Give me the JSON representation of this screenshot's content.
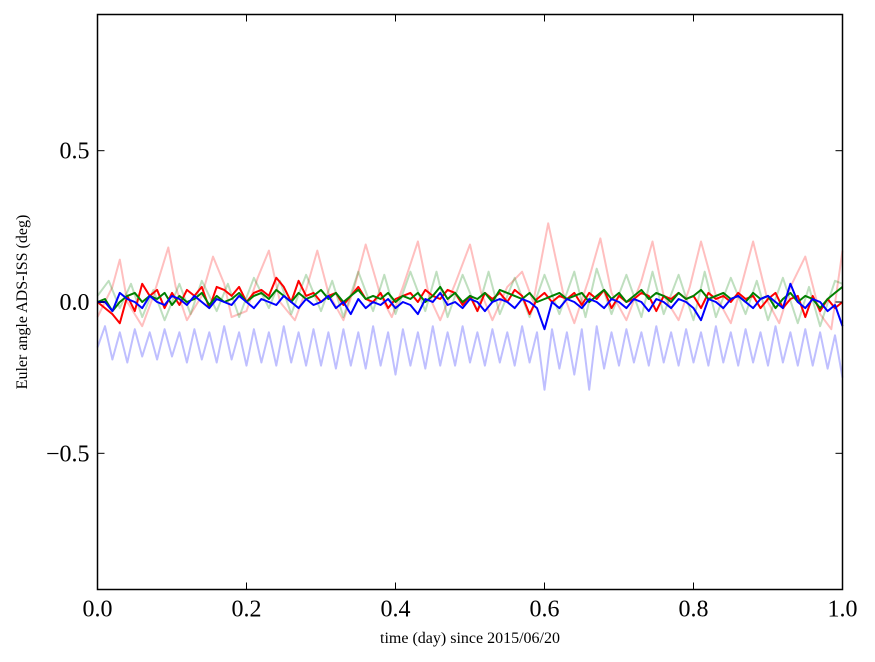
{
  "chart_data": {
    "type": "line",
    "title": "",
    "xlabel": "time (day) since 2015/06/20",
    "ylabel": "Euler angle ADS-ISS (deg)",
    "xlim": [
      0.0,
      1.0
    ],
    "ylim": [
      -0.95,
      0.95
    ],
    "grid": false,
    "x_ticks": [
      {
        "value": 0.0,
        "label": "0.0"
      },
      {
        "value": 0.2,
        "label": "0.2"
      },
      {
        "value": 0.4,
        "label": "0.4"
      },
      {
        "value": 0.6,
        "label": "0.6"
      },
      {
        "value": 0.8,
        "label": "0.8"
      },
      {
        "value": 1.0,
        "label": "1.0"
      }
    ],
    "y_ticks": [
      {
        "value": -0.5,
        "label": "−0.5"
      },
      {
        "value": 0.0,
        "label": "0.0"
      },
      {
        "value": 0.5,
        "label": "0.5"
      }
    ],
    "series": [
      {
        "color": "#ff0000",
        "opacity": 0.25,
        "x": [
          0.0,
          0.02,
          0.03,
          0.04,
          0.06,
          0.075,
          0.095,
          0.105,
          0.12,
          0.14,
          0.155,
          0.17,
          0.18,
          0.2,
          0.215,
          0.23,
          0.245,
          0.265,
          0.28,
          0.295,
          0.31,
          0.33,
          0.345,
          0.36,
          0.38,
          0.395,
          0.41,
          0.43,
          0.445,
          0.46,
          0.48,
          0.5,
          0.515,
          0.53,
          0.55,
          0.57,
          0.585,
          0.605,
          0.625,
          0.64,
          0.66,
          0.675,
          0.69,
          0.71,
          0.73,
          0.745,
          0.76,
          0.78,
          0.795,
          0.81,
          0.83,
          0.85,
          0.865,
          0.88,
          0.9,
          0.915,
          0.93,
          0.95,
          0.97,
          0.985,
          1.0
        ],
        "y": [
          -0.05,
          0.05,
          0.14,
          0.0,
          -0.08,
          0.02,
          0.18,
          0.05,
          -0.06,
          0.02,
          0.15,
          0.06,
          -0.05,
          -0.03,
          0.08,
          0.17,
          0.0,
          -0.06,
          0.04,
          0.17,
          0.03,
          -0.06,
          0.05,
          0.19,
          0.02,
          -0.05,
          0.05,
          0.2,
          0.02,
          -0.06,
          0.06,
          0.19,
          0.03,
          -0.06,
          0.05,
          0.1,
          0.0,
          0.26,
          0.03,
          -0.07,
          0.08,
          0.21,
          0.03,
          -0.06,
          0.07,
          0.2,
          0.02,
          -0.06,
          0.05,
          0.2,
          0.02,
          -0.07,
          0.06,
          0.2,
          0.0,
          -0.07,
          0.05,
          0.15,
          -0.04,
          -0.09,
          0.17
        ]
      },
      {
        "color": "#008000",
        "opacity": 0.25,
        "x": [
          0.0,
          0.015,
          0.03,
          0.045,
          0.06,
          0.075,
          0.09,
          0.11,
          0.125,
          0.14,
          0.16,
          0.175,
          0.19,
          0.21,
          0.23,
          0.245,
          0.26,
          0.28,
          0.3,
          0.315,
          0.33,
          0.35,
          0.37,
          0.385,
          0.4,
          0.42,
          0.44,
          0.455,
          0.47,
          0.49,
          0.51,
          0.525,
          0.54,
          0.56,
          0.58,
          0.6,
          0.62,
          0.64,
          0.655,
          0.67,
          0.69,
          0.71,
          0.73,
          0.745,
          0.76,
          0.78,
          0.8,
          0.815,
          0.83,
          0.85,
          0.87,
          0.885,
          0.9,
          0.92,
          0.94,
          0.955,
          0.97,
          0.99,
          1.0
        ],
        "y": [
          0.02,
          0.07,
          -0.02,
          0.06,
          -0.05,
          0.04,
          -0.06,
          0.06,
          -0.04,
          0.07,
          -0.03,
          0.06,
          -0.05,
          0.08,
          -0.02,
          0.07,
          -0.04,
          0.09,
          -0.03,
          0.07,
          -0.05,
          0.1,
          -0.03,
          0.09,
          -0.04,
          0.1,
          -0.03,
          0.1,
          -0.05,
          0.09,
          -0.03,
          0.1,
          -0.04,
          0.08,
          -0.05,
          0.09,
          -0.04,
          0.1,
          -0.05,
          0.11,
          -0.04,
          0.09,
          -0.05,
          0.1,
          -0.04,
          0.09,
          -0.06,
          0.1,
          -0.05,
          0.08,
          -0.04,
          0.07,
          -0.06,
          0.08,
          -0.07,
          0.05,
          -0.08,
          0.07,
          0.06
        ]
      },
      {
        "color": "#0000ff",
        "opacity": 0.25,
        "x": [
          0.0,
          0.01,
          0.02,
          0.03,
          0.04,
          0.05,
          0.06,
          0.07,
          0.08,
          0.09,
          0.1,
          0.11,
          0.12,
          0.13,
          0.14,
          0.15,
          0.16,
          0.17,
          0.18,
          0.19,
          0.2,
          0.21,
          0.22,
          0.23,
          0.24,
          0.25,
          0.26,
          0.27,
          0.28,
          0.29,
          0.3,
          0.31,
          0.32,
          0.33,
          0.34,
          0.35,
          0.36,
          0.37,
          0.38,
          0.39,
          0.4,
          0.41,
          0.42,
          0.43,
          0.44,
          0.45,
          0.46,
          0.47,
          0.48,
          0.49,
          0.5,
          0.51,
          0.52,
          0.53,
          0.54,
          0.55,
          0.56,
          0.57,
          0.58,
          0.59,
          0.6,
          0.61,
          0.62,
          0.63,
          0.64,
          0.65,
          0.66,
          0.67,
          0.68,
          0.69,
          0.7,
          0.71,
          0.72,
          0.73,
          0.74,
          0.75,
          0.76,
          0.77,
          0.78,
          0.79,
          0.8,
          0.81,
          0.82,
          0.83,
          0.84,
          0.85,
          0.86,
          0.87,
          0.88,
          0.89,
          0.9,
          0.91,
          0.92,
          0.93,
          0.94,
          0.95,
          0.96,
          0.97,
          0.98,
          0.99,
          1.0
        ],
        "y": [
          -0.15,
          -0.08,
          -0.19,
          -0.1,
          -0.2,
          -0.09,
          -0.18,
          -0.1,
          -0.19,
          -0.09,
          -0.18,
          -0.1,
          -0.2,
          -0.09,
          -0.19,
          -0.1,
          -0.2,
          -0.08,
          -0.19,
          -0.1,
          -0.21,
          -0.09,
          -0.2,
          -0.1,
          -0.21,
          -0.08,
          -0.2,
          -0.1,
          -0.21,
          -0.09,
          -0.21,
          -0.1,
          -0.22,
          -0.09,
          -0.21,
          -0.1,
          -0.22,
          -0.08,
          -0.21,
          -0.1,
          -0.24,
          -0.09,
          -0.21,
          -0.1,
          -0.22,
          -0.08,
          -0.21,
          -0.1,
          -0.21,
          -0.08,
          -0.2,
          -0.1,
          -0.21,
          -0.09,
          -0.2,
          -0.1,
          -0.21,
          -0.08,
          -0.2,
          -0.1,
          -0.29,
          -0.09,
          -0.22,
          -0.1,
          -0.24,
          -0.09,
          -0.29,
          -0.08,
          -0.22,
          -0.1,
          -0.21,
          -0.09,
          -0.2,
          -0.1,
          -0.21,
          -0.08,
          -0.2,
          -0.1,
          -0.21,
          -0.09,
          -0.2,
          -0.1,
          -0.21,
          -0.08,
          -0.2,
          -0.1,
          -0.21,
          -0.09,
          -0.2,
          -0.1,
          -0.21,
          -0.08,
          -0.2,
          -0.1,
          -0.21,
          -0.09,
          -0.21,
          -0.1,
          -0.22,
          -0.11,
          -0.25
        ]
      },
      {
        "color": "#ff0000",
        "opacity": 1,
        "x": [
          0.0,
          0.01,
          0.02,
          0.03,
          0.04,
          0.05,
          0.06,
          0.07,
          0.08,
          0.09,
          0.1,
          0.11,
          0.12,
          0.13,
          0.14,
          0.15,
          0.16,
          0.17,
          0.18,
          0.19,
          0.2,
          0.21,
          0.22,
          0.23,
          0.24,
          0.25,
          0.26,
          0.27,
          0.28,
          0.29,
          0.3,
          0.31,
          0.32,
          0.33,
          0.34,
          0.35,
          0.36,
          0.37,
          0.38,
          0.39,
          0.4,
          0.41,
          0.42,
          0.43,
          0.44,
          0.45,
          0.46,
          0.47,
          0.48,
          0.49,
          0.5,
          0.51,
          0.52,
          0.53,
          0.54,
          0.55,
          0.56,
          0.57,
          0.58,
          0.59,
          0.6,
          0.61,
          0.62,
          0.63,
          0.64,
          0.65,
          0.66,
          0.67,
          0.68,
          0.69,
          0.7,
          0.71,
          0.72,
          0.73,
          0.74,
          0.75,
          0.76,
          0.77,
          0.78,
          0.79,
          0.8,
          0.81,
          0.82,
          0.83,
          0.84,
          0.85,
          0.86,
          0.87,
          0.88,
          0.89,
          0.9,
          0.91,
          0.92,
          0.93,
          0.94,
          0.95,
          0.96,
          0.97,
          0.98,
          0.99,
          1.0
        ],
        "y": [
          0.0,
          -0.02,
          -0.04,
          -0.07,
          0.02,
          -0.03,
          0.06,
          0.02,
          0.04,
          -0.02,
          0.03,
          -0.01,
          0.04,
          0.02,
          0.05,
          -0.02,
          0.05,
          0.04,
          0.02,
          0.05,
          0.0,
          0.03,
          0.04,
          0.02,
          0.08,
          0.05,
          0.0,
          0.07,
          0.02,
          0.03,
          0.0,
          0.02,
          0.03,
          -0.01,
          0.02,
          0.05,
          0.01,
          0.0,
          0.03,
          -0.02,
          0.01,
          0.02,
          0.03,
          0.0,
          0.04,
          0.02,
          0.01,
          0.04,
          0.03,
          -0.01,
          0.02,
          -0.03,
          0.03,
          0.01,
          0.03,
          0.0,
          0.04,
          0.02,
          -0.04,
          0.01,
          0.03,
          0.0,
          0.02,
          0.01,
          0.03,
          -0.01,
          0.03,
          0.01,
          0.04,
          -0.02,
          0.02,
          0.0,
          0.01,
          0.03,
          0.02,
          -0.03,
          0.02,
          0.01,
          0.03,
          0.01,
          0.02,
          -0.02,
          0.03,
          0.01,
          0.02,
          0.0,
          0.03,
          0.01,
          0.02,
          -0.02,
          0.01,
          0.03,
          -0.02,
          0.01,
          0.02,
          -0.05,
          0.02,
          -0.03,
          0.01,
          -0.02,
          0.0
        ]
      },
      {
        "color": "#008000",
        "opacity": 1,
        "x": [
          0.0,
          0.01,
          0.02,
          0.03,
          0.04,
          0.05,
          0.06,
          0.07,
          0.08,
          0.09,
          0.1,
          0.11,
          0.12,
          0.13,
          0.14,
          0.15,
          0.16,
          0.17,
          0.18,
          0.19,
          0.2,
          0.21,
          0.22,
          0.23,
          0.24,
          0.25,
          0.26,
          0.27,
          0.28,
          0.29,
          0.3,
          0.31,
          0.32,
          0.33,
          0.34,
          0.35,
          0.36,
          0.37,
          0.38,
          0.39,
          0.4,
          0.41,
          0.42,
          0.43,
          0.44,
          0.45,
          0.46,
          0.47,
          0.48,
          0.49,
          0.5,
          0.51,
          0.52,
          0.53,
          0.54,
          0.55,
          0.56,
          0.57,
          0.58,
          0.59,
          0.6,
          0.61,
          0.62,
          0.63,
          0.64,
          0.65,
          0.66,
          0.67,
          0.68,
          0.69,
          0.7,
          0.71,
          0.72,
          0.73,
          0.74,
          0.75,
          0.76,
          0.77,
          0.78,
          0.79,
          0.8,
          0.81,
          0.82,
          0.83,
          0.84,
          0.85,
          0.86,
          0.87,
          0.88,
          0.89,
          0.9,
          0.91,
          0.92,
          0.93,
          0.94,
          0.95,
          0.96,
          0.97,
          0.98,
          0.99,
          1.0
        ],
        "y": [
          0.0,
          0.01,
          -0.03,
          0.0,
          0.02,
          0.03,
          0.0,
          0.02,
          0.01,
          0.03,
          -0.01,
          0.02,
          0.0,
          0.01,
          0.03,
          -0.01,
          0.02,
          0.0,
          0.01,
          0.03,
          0.0,
          0.02,
          0.03,
          0.01,
          0.04,
          0.02,
          0.0,
          0.03,
          0.01,
          0.02,
          0.04,
          0.01,
          0.03,
          0.0,
          0.02,
          0.04,
          0.01,
          0.02,
          0.01,
          0.03,
          0.0,
          0.02,
          0.01,
          0.03,
          0.0,
          0.02,
          0.05,
          0.01,
          0.03,
          0.0,
          0.02,
          0.01,
          0.03,
          0.0,
          0.04,
          0.03,
          0.02,
          0.01,
          0.03,
          0.0,
          0.01,
          0.02,
          0.03,
          0.01,
          0.02,
          0.03,
          0.0,
          0.02,
          0.04,
          0.01,
          0.03,
          0.0,
          0.02,
          0.04,
          0.01,
          0.03,
          0.02,
          0.0,
          0.03,
          0.01,
          0.02,
          0.04,
          0.01,
          0.02,
          0.03,
          0.01,
          0.02,
          0.0,
          0.03,
          0.01,
          0.02,
          -0.02,
          0.01,
          0.03,
          0.0,
          0.02,
          0.01,
          -0.02,
          0.01,
          0.03,
          0.05
        ]
      },
      {
        "color": "#0000ff",
        "opacity": 1,
        "x": [
          0.0,
          0.01,
          0.02,
          0.03,
          0.04,
          0.05,
          0.06,
          0.07,
          0.08,
          0.09,
          0.1,
          0.11,
          0.12,
          0.13,
          0.14,
          0.15,
          0.16,
          0.17,
          0.18,
          0.19,
          0.2,
          0.21,
          0.22,
          0.23,
          0.24,
          0.25,
          0.26,
          0.27,
          0.28,
          0.29,
          0.3,
          0.31,
          0.32,
          0.33,
          0.34,
          0.35,
          0.36,
          0.37,
          0.38,
          0.39,
          0.4,
          0.41,
          0.42,
          0.43,
          0.44,
          0.45,
          0.46,
          0.47,
          0.48,
          0.49,
          0.5,
          0.51,
          0.52,
          0.53,
          0.54,
          0.55,
          0.56,
          0.57,
          0.58,
          0.59,
          0.6,
          0.61,
          0.62,
          0.63,
          0.64,
          0.65,
          0.66,
          0.67,
          0.68,
          0.69,
          0.7,
          0.71,
          0.72,
          0.73,
          0.74,
          0.75,
          0.76,
          0.77,
          0.78,
          0.79,
          0.8,
          0.81,
          0.82,
          0.83,
          0.84,
          0.85,
          0.86,
          0.87,
          0.88,
          0.89,
          0.9,
          0.91,
          0.92,
          0.93,
          0.94,
          0.95,
          0.96,
          0.97,
          0.98,
          0.99,
          1.0
        ],
        "y": [
          0.0,
          0.0,
          -0.03,
          0.03,
          0.01,
          0.0,
          -0.02,
          0.02,
          0.0,
          -0.01,
          0.02,
          0.01,
          -0.01,
          0.02,
          0.0,
          -0.02,
          0.01,
          0.0,
          -0.01,
          0.02,
          0.0,
          -0.02,
          0.01,
          0.0,
          -0.01,
          0.02,
          0.0,
          -0.02,
          0.01,
          -0.01,
          0.0,
          0.02,
          -0.02,
          0.0,
          -0.04,
          0.01,
          -0.02,
          0.0,
          -0.01,
          0.01,
          -0.02,
          0.0,
          -0.01,
          -0.04,
          0.01,
          0.0,
          0.03,
          -0.01,
          0.0,
          -0.02,
          0.01,
          0.0,
          -0.03,
          0.0,
          0.01,
          0.0,
          -0.02,
          0.01,
          0.0,
          -0.02,
          -0.09,
          0.0,
          -0.02,
          0.01,
          0.0,
          -0.02,
          0.01,
          0.0,
          -0.02,
          0.01,
          0.0,
          -0.02,
          0.01,
          0.0,
          -0.03,
          0.01,
          0.0,
          -0.02,
          0.01,
          0.0,
          -0.02,
          -0.06,
          0.01,
          0.0,
          -0.02,
          0.01,
          0.02,
          0.0,
          -0.02,
          0.01,
          0.02,
          0.0,
          -0.02,
          0.06,
          0.0,
          -0.02,
          0.01,
          0.0,
          -0.03,
          -0.01,
          -0.08
        ]
      }
    ]
  }
}
